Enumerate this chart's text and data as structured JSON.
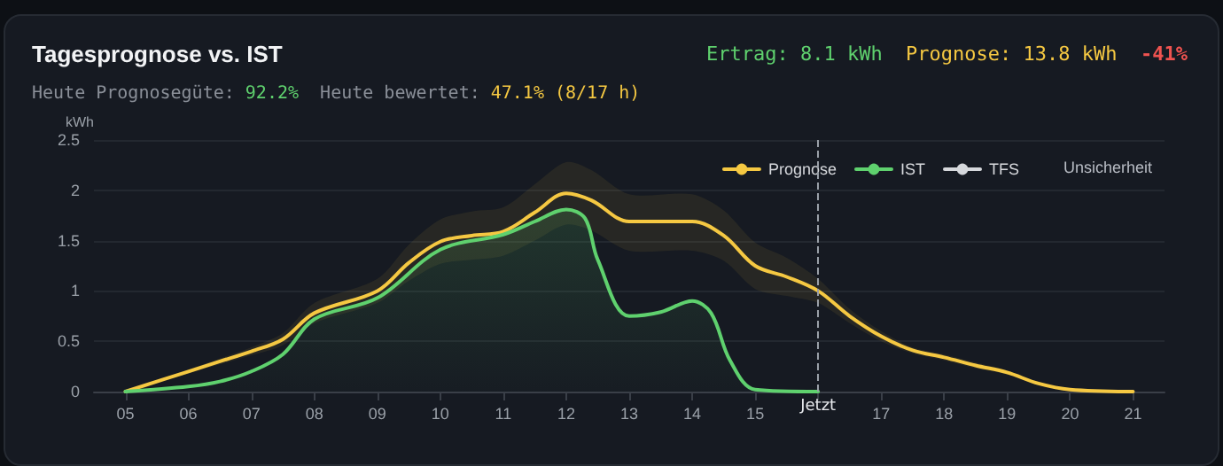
{
  "chart_data": {
    "type": "line",
    "title": "Tagesprognose vs. IST",
    "ylabel": "kWh",
    "annotations": [
      "Ertrag: 8.1 kWh",
      "Prognose: 13.8 kWh",
      "-41%",
      "Heute Prognosegüte:",
      "92.2%",
      "Heute bewertet:",
      "47.1% (8/17 h)",
      "Unsicherheit"
    ],
    "x": [
      5,
      6,
      6.5,
      7,
      7.5,
      8,
      9,
      9.5,
      10,
      10.5,
      11,
      11.5,
      12,
      12.4,
      13,
      14,
      14.5,
      15,
      15.5,
      16,
      16.5,
      17,
      17.5,
      18,
      18.5,
      19,
      19.5,
      20,
      21
    ],
    "series": [
      {
        "name": "Prognose",
        "color": "#f5c842",
        "values": [
          0,
          0.2,
          0.3,
          0.4,
          0.52,
          0.78,
          1.0,
          1.28,
          1.49,
          1.55,
          1.59,
          1.78,
          1.97,
          1.9,
          1.69,
          1.69,
          1.55,
          1.25,
          1.14,
          1.0,
          0.75,
          0.55,
          0.41,
          0.34,
          0.26,
          0.19,
          0.08,
          0.02,
          0
        ],
        "lower": [
          0,
          0.18,
          0.27,
          0.36,
          0.46,
          0.68,
          0.88,
          1.1,
          1.27,
          1.31,
          1.35,
          1.5,
          1.66,
          1.6,
          1.4,
          1.4,
          1.3,
          1.02,
          0.95,
          0.88,
          0.68,
          0.5,
          0.38,
          0.31,
          0.23,
          0.17,
          0.07,
          0.02,
          0
        ],
        "upper": [
          0,
          0.22,
          0.33,
          0.44,
          0.58,
          0.88,
          1.12,
          1.46,
          1.71,
          1.79,
          1.83,
          2.06,
          2.28,
          2.2,
          1.96,
          1.96,
          1.8,
          1.48,
          1.33,
          1.12,
          0.82,
          0.6,
          0.44,
          0.37,
          0.29,
          0.21,
          0.09,
          0.02,
          0
        ]
      },
      {
        "name": "IST",
        "type": "area",
        "color": "#5fd16e",
        "x": [
          5,
          6,
          6.5,
          7,
          7.5,
          8,
          9,
          10,
          11,
          11.5,
          12,
          12.3,
          12.5,
          13,
          13.5,
          14,
          14.3,
          14.6,
          15,
          16
        ],
        "values": [
          0,
          0.05,
          0.1,
          0.2,
          0.37,
          0.72,
          0.93,
          1.41,
          1.56,
          1.69,
          1.81,
          1.72,
          1.31,
          0.75,
          0.79,
          0.9,
          0.78,
          0.31,
          0.02,
          0
        ]
      },
      {
        "name": "TFS",
        "color": "#d6d8dc",
        "values": [
          null,
          null,
          null,
          null,
          null,
          null,
          null,
          null,
          null,
          null,
          null,
          null,
          null,
          null,
          null,
          null,
          null,
          null,
          null,
          null,
          null,
          null,
          null,
          null,
          null,
          null,
          null,
          null,
          null
        ]
      }
    ],
    "xlim": [
      4.5,
      21.5
    ],
    "xticks": [
      {
        "value": 5,
        "label": "05"
      },
      {
        "value": 6,
        "label": "06"
      },
      {
        "value": 7,
        "label": "07"
      },
      {
        "value": 8,
        "label": "08"
      },
      {
        "value": 9,
        "label": "09"
      },
      10,
      11,
      12,
      13,
      14,
      15,
      {
        "value": 16,
        "label": null
      },
      17,
      18,
      19,
      20,
      21
    ],
    "ylim": [
      0,
      2.5
    ],
    "yticks": [
      0,
      0.5,
      1,
      1.5,
      2,
      2.5
    ],
    "ref_lines": [
      {
        "axis": "x",
        "value": 16,
        "label": "Jetzt",
        "color": "#9aa0a8",
        "line_style": "dashed"
      }
    ],
    "grid": "y",
    "legend": "top right",
    "marker": "none",
    "line_style": "solid"
  }
}
